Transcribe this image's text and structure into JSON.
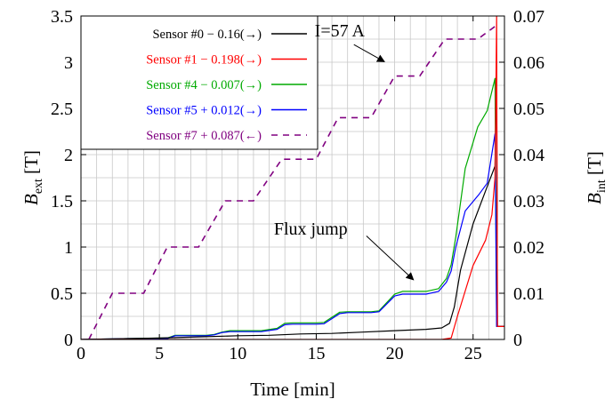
{
  "chart_data": {
    "type": "line",
    "xlabel": "Time [min]",
    "ylabel_left": {
      "main": "B",
      "sub": "ext",
      "unit": " [T]"
    },
    "ylabel_right": {
      "main": "B",
      "sub": "int",
      "unit": " [T]"
    },
    "xlim": [
      0,
      27
    ],
    "ylim_left": [
      0,
      3.5
    ],
    "ylim_right": [
      0,
      0.07
    ],
    "xticks": [
      0,
      5,
      10,
      15,
      20,
      25
    ],
    "yticks_left": [
      "0",
      "0.5",
      "1",
      "1.5",
      "2",
      "2.5",
      "3",
      "3.5"
    ],
    "yticks_right": [
      "0",
      "0.01",
      "0.02",
      "0.03",
      "0.04",
      "0.05",
      "0.06",
      "0.07"
    ],
    "grid": true,
    "legend_position": "top-left",
    "annotations": [
      {
        "text": "I=57 A",
        "text_at": [
          14.9,
          0.0656
        ],
        "arrow_from": [
          17.4,
          0.0638
        ],
        "arrow_to": [
          19.35,
          0.0601
        ]
      },
      {
        "text": "Flux jump",
        "text_at": [
          12.3,
          0.0227
        ],
        "arrow_from": [
          18.2,
          0.0224
        ],
        "arrow_to": [
          21.2,
          0.0129
        ]
      }
    ],
    "series": [
      {
        "name": "Sensor #0 − 0.16(→)",
        "color": "#000000",
        "dash": "solid",
        "axis": "right",
        "points": [
          [
            0,
            0
          ],
          [
            5,
            0.0003
          ],
          [
            8,
            0.0006
          ],
          [
            10,
            0.0008
          ],
          [
            12,
            0.0009
          ],
          [
            14,
            0.0012
          ],
          [
            16,
            0.0013
          ],
          [
            18,
            0.0016
          ],
          [
            20,
            0.0019
          ],
          [
            22,
            0.0022
          ],
          [
            23,
            0.0025
          ],
          [
            23.5,
            0.0035
          ],
          [
            23.8,
            0.007
          ],
          [
            24.2,
            0.015
          ],
          [
            25,
            0.025
          ],
          [
            26,
            0.034
          ],
          [
            26.4,
            0.0375
          ],
          [
            26.5,
            0.06
          ],
          [
            26.55,
            0.0028
          ],
          [
            27,
            0.0028
          ]
        ]
      },
      {
        "name": "Sensor #1 − 0.198(→)",
        "color": "#ff0000",
        "dash": "solid",
        "axis": "right",
        "points": [
          [
            0,
            0
          ],
          [
            23,
            0
          ],
          [
            23.6,
            0.0003
          ],
          [
            24,
            0.005
          ],
          [
            25,
            0.016
          ],
          [
            25.8,
            0.0215
          ],
          [
            26.2,
            0.027
          ],
          [
            26.4,
            0.035
          ],
          [
            26.5,
            0.07
          ],
          [
            26.55,
            0.0028
          ],
          [
            27,
            0.0028
          ]
        ]
      },
      {
        "name": "Sensor #4 − 0.007(→)",
        "color": "#00aa00",
        "dash": "solid",
        "axis": "right",
        "points": [
          [
            0,
            0
          ],
          [
            3,
            0.0002
          ],
          [
            5.5,
            0.0003
          ],
          [
            6,
            0.0009
          ],
          [
            8,
            0.0009
          ],
          [
            8.5,
            0.0011
          ],
          [
            9,
            0.0016
          ],
          [
            9.5,
            0.0019
          ],
          [
            11.5,
            0.0019
          ],
          [
            12.5,
            0.0024
          ],
          [
            13,
            0.0035
          ],
          [
            13.5,
            0.0036
          ],
          [
            15,
            0.0036
          ],
          [
            15.5,
            0.0037
          ],
          [
            16.5,
            0.0059
          ],
          [
            17,
            0.006
          ],
          [
            18.5,
            0.006
          ],
          [
            19,
            0.0062
          ],
          [
            20,
            0.0098
          ],
          [
            20.5,
            0.0104
          ],
          [
            22,
            0.0104
          ],
          [
            22.8,
            0.011
          ],
          [
            23.3,
            0.0132
          ],
          [
            23.6,
            0.0162
          ],
          [
            23.9,
            0.0222
          ],
          [
            24.5,
            0.037
          ],
          [
            25.3,
            0.046
          ],
          [
            25.9,
            0.0495
          ],
          [
            26.4,
            0.0565
          ],
          [
            26.5,
            0.0028
          ],
          [
            27,
            0.0028
          ]
        ]
      },
      {
        "name": "Sensor #5 + 0.012(→)",
        "color": "#0000ff",
        "dash": "solid",
        "axis": "right",
        "points": [
          [
            0,
            0
          ],
          [
            3,
            0.0002
          ],
          [
            5.5,
            0.0002
          ],
          [
            6,
            0.0008
          ],
          [
            8,
            0.0008
          ],
          [
            8.5,
            0.001
          ],
          [
            9,
            0.0015
          ],
          [
            9.5,
            0.0017
          ],
          [
            11.5,
            0.0017
          ],
          [
            12.5,
            0.0022
          ],
          [
            13,
            0.0032
          ],
          [
            13.5,
            0.0033
          ],
          [
            15,
            0.0033
          ],
          [
            15.5,
            0.0034
          ],
          [
            16.5,
            0.0056
          ],
          [
            17,
            0.0058
          ],
          [
            18.5,
            0.0058
          ],
          [
            19,
            0.006
          ],
          [
            20,
            0.0094
          ],
          [
            20.5,
            0.0098
          ],
          [
            22,
            0.0098
          ],
          [
            22.8,
            0.0104
          ],
          [
            23.3,
            0.0124
          ],
          [
            23.6,
            0.0148
          ],
          [
            23.9,
            0.02
          ],
          [
            24.5,
            0.0278
          ],
          [
            25.4,
            0.0315
          ],
          [
            25.9,
            0.0338
          ],
          [
            26.4,
            0.0445
          ],
          [
            26.5,
            0.0028
          ],
          [
            27,
            0.0028
          ]
        ]
      },
      {
        "name": "Sensor #7 + 0.087(←)",
        "color": "#800080",
        "dash": "dashed",
        "axis": "left",
        "points": [
          [
            0.5,
            0
          ],
          [
            2,
            0.5
          ],
          [
            4,
            0.5
          ],
          [
            5.5,
            1
          ],
          [
            7.5,
            1
          ],
          [
            9.2,
            1.5
          ],
          [
            11,
            1.5
          ],
          [
            12.8,
            1.95
          ],
          [
            15,
            1.95
          ],
          [
            16.4,
            2.4
          ],
          [
            18.5,
            2.4
          ],
          [
            20,
            2.85
          ],
          [
            21.6,
            2.85
          ],
          [
            23.2,
            3.25
          ],
          [
            25.3,
            3.25
          ],
          [
            26.5,
            3.4
          ]
        ]
      }
    ]
  }
}
